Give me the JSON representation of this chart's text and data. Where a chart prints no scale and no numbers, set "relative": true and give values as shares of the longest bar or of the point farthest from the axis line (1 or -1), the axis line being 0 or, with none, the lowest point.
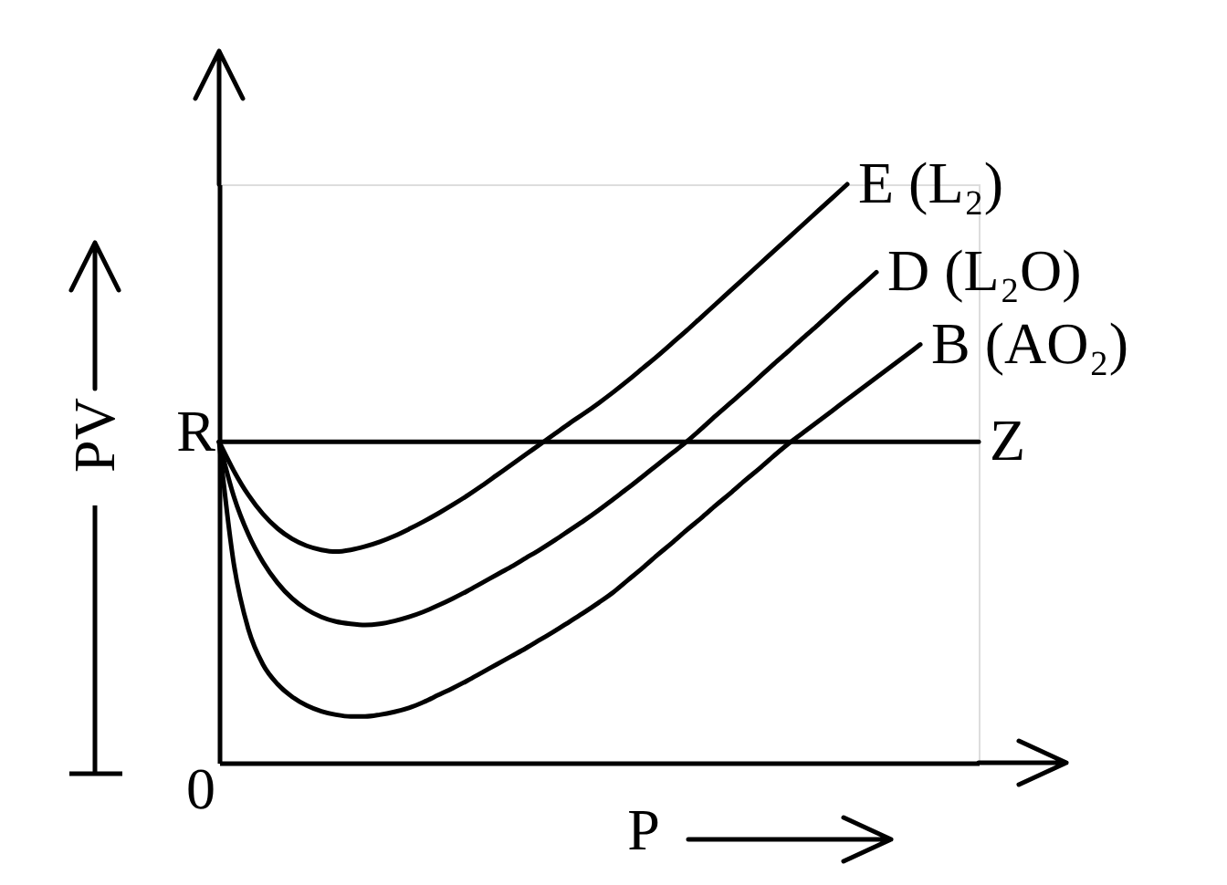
{
  "chart_data": {
    "type": "line",
    "xlabel": "P",
    "ylabel": "PV",
    "relative": true,
    "categories": [
      null,
      null,
      null,
      null,
      null,
      null,
      null,
      null,
      null,
      null,
      null,
      null,
      null,
      null,
      null,
      null,
      null,
      null,
      null,
      null,
      null,
      null,
      null,
      null,
      null,
      null,
      null,
      null,
      null,
      null,
      null,
      null,
      null,
      null,
      null,
      null,
      null,
      null,
      null,
      null,
      null,
      null,
      null,
      null,
      null,
      null,
      null,
      null,
      null,
      null,
      null,
      null,
      null
    ],
    "series": [
      {
        "name": "E (L₂)",
        "color": "#000000",
        "values": [
          0.555,
          0.505,
          0.463,
          0.43,
          0.405,
          0.387,
          0.375,
          0.368,
          0.365,
          0.368,
          0.374,
          0.382,
          0.392,
          0.404,
          0.417,
          0.431,
          0.446,
          0.462,
          0.479,
          0.497,
          0.515,
          0.533,
          0.551,
          0.569,
          0.587,
          0.604,
          0.622,
          0.641,
          0.661,
          0.682,
          0.703,
          0.725,
          0.747,
          0.77,
          0.793,
          0.816,
          0.839,
          0.862,
          0.885,
          0.908,
          0.931,
          0.954,
          0.977,
          1.0,
          null,
          null,
          null,
          null,
          null,
          null,
          null,
          null,
          null
        ]
      },
      {
        "name": "D (L₂O)",
        "color": "#000000",
        "values": [
          0.555,
          0.461,
          0.395,
          0.347,
          0.311,
          0.284,
          0.265,
          0.252,
          0.244,
          0.24,
          0.238,
          0.24,
          0.245,
          0.252,
          0.261,
          0.272,
          0.284,
          0.297,
          0.311,
          0.325,
          0.339,
          0.354,
          0.369,
          0.385,
          0.402,
          0.419,
          0.437,
          0.456,
          0.475,
          0.495,
          0.515,
          0.535,
          0.555,
          0.577,
          0.6,
          0.622,
          0.644,
          0.667,
          0.69,
          0.712,
          0.735,
          0.757,
          0.78,
          0.803,
          0.825,
          0.848,
          null,
          null,
          null,
          null,
          null,
          null,
          null
        ]
      },
      {
        "name": "B (AO₂)",
        "color": "#000000",
        "values": [
          0.555,
          0.345,
          0.231,
          0.17,
          0.136,
          0.114,
          0.099,
          0.089,
          0.083,
          0.08,
          0.08,
          0.083,
          0.088,
          0.095,
          0.105,
          0.117,
          0.129,
          0.142,
          0.156,
          0.17,
          0.184,
          0.198,
          0.213,
          0.228,
          0.244,
          0.26,
          0.277,
          0.295,
          0.316,
          0.337,
          0.359,
          0.38,
          0.402,
          0.423,
          0.445,
          0.466,
          0.488,
          0.509,
          0.531,
          0.552,
          0.571,
          0.59,
          0.609,
          0.628,
          0.647,
          0.666,
          0.685,
          0.704,
          0.723,
          null,
          null,
          null,
          null
        ]
      },
      {
        "name": "Z",
        "color": "#000000",
        "values": [
          0.555,
          0.555,
          0.555,
          0.555,
          0.555,
          0.555,
          0.555,
          0.555,
          0.555,
          0.555,
          0.555,
          0.555,
          0.555,
          0.555,
          0.555,
          0.555,
          0.555,
          0.555,
          0.555,
          0.555,
          0.555,
          0.555,
          0.555,
          0.555,
          0.555,
          0.555,
          0.555,
          0.555,
          0.555,
          0.555,
          0.555,
          0.555,
          0.555,
          0.555,
          0.555,
          0.555,
          0.555,
          0.555,
          0.555,
          0.555,
          0.555,
          0.555,
          0.555,
          0.555,
          0.555,
          0.555,
          0.555,
          0.555,
          0.555,
          0.555,
          0.555,
          0.555,
          0.555
        ]
      }
    ],
    "annotations": [
      "R",
      "0"
    ]
  }
}
